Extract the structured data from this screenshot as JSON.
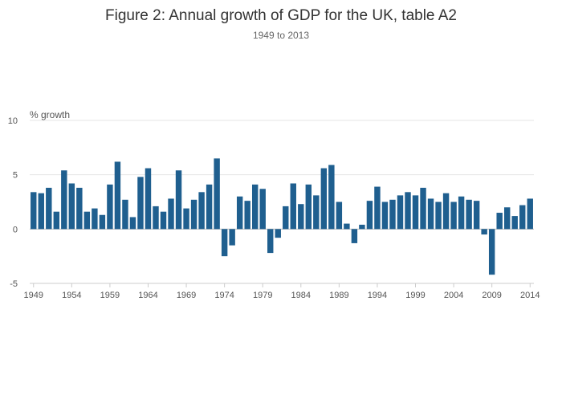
{
  "chart_data": {
    "type": "bar",
    "title": "Figure 2: Annual growth of GDP for the UK, table A2",
    "subtitle": "1949 to 2013",
    "unit_label": "% growth",
    "xlabel": "",
    "ylabel": "",
    "ylim": [
      -5,
      10
    ],
    "yticks": [
      "10",
      "5",
      "0",
      "-5"
    ],
    "xticks": [
      "1949",
      "1954",
      "1959",
      "1964",
      "1969",
      "1974",
      "1979",
      "1984",
      "1989",
      "1994",
      "1999",
      "2004",
      "2009",
      "2014"
    ],
    "grid": true,
    "colors": {
      "bar": "#1f5f8f"
    },
    "x": [
      1949,
      1950,
      1951,
      1952,
      1953,
      1954,
      1955,
      1956,
      1957,
      1958,
      1959,
      1960,
      1961,
      1962,
      1963,
      1964,
      1965,
      1966,
      1967,
      1968,
      1969,
      1970,
      1971,
      1972,
      1973,
      1974,
      1975,
      1976,
      1977,
      1978,
      1979,
      1980,
      1981,
      1982,
      1983,
      1984,
      1985,
      1986,
      1987,
      1988,
      1989,
      1990,
      1991,
      1992,
      1993,
      1994,
      1995,
      1996,
      1997,
      1998,
      1999,
      2000,
      2001,
      2002,
      2003,
      2004,
      2005,
      2006,
      2007,
      2008,
      2009,
      2010,
      2011,
      2012,
      2013,
      2014
    ],
    "values": [
      3.4,
      3.3,
      3.8,
      1.6,
      5.4,
      4.2,
      3.8,
      1.6,
      1.9,
      1.3,
      4.1,
      6.2,
      2.7,
      1.1,
      4.8,
      5.6,
      2.1,
      1.6,
      2.8,
      5.4,
      1.9,
      2.7,
      3.4,
      4.1,
      6.5,
      -2.5,
      -1.5,
      3.0,
      2.6,
      4.1,
      3.7,
      -2.2,
      -0.8,
      2.1,
      4.2,
      2.3,
      4.1,
      3.1,
      5.6,
      5.9,
      2.5,
      0.5,
      -1.3,
      0.4,
      2.6,
      3.9,
      2.5,
      2.7,
      3.1,
      3.4,
      3.1,
      3.8,
      2.8,
      2.5,
      3.3,
      2.5,
      3.0,
      2.7,
      2.6,
      -0.5,
      -4.2,
      1.5,
      2.0,
      1.2,
      2.2,
      2.8
    ]
  }
}
